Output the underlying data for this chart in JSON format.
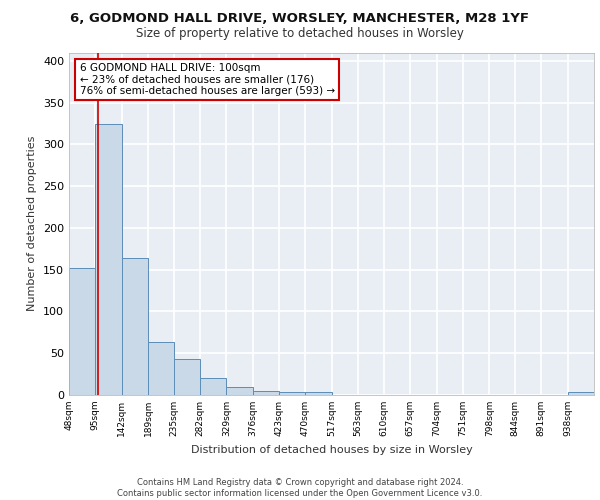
{
  "title1": "6, GODMOND HALL DRIVE, WORSLEY, MANCHESTER, M28 1YF",
  "title2": "Size of property relative to detached houses in Worsley",
  "xlabel": "Distribution of detached houses by size in Worsley",
  "ylabel": "Number of detached properties",
  "bar_edges": [
    48,
    95,
    142,
    189,
    235,
    282,
    329,
    376,
    423,
    470,
    517,
    563,
    610,
    657,
    704,
    751,
    798,
    844,
    891,
    938,
    985
  ],
  "bar_heights": [
    152,
    325,
    164,
    64,
    43,
    20,
    10,
    5,
    4,
    4,
    0,
    0,
    0,
    0,
    0,
    0,
    0,
    0,
    0,
    4
  ],
  "bar_color": "#c9d9e8",
  "bar_edge_color": "#5b8db8",
  "bg_color": "#e8eef4",
  "grid_color": "#ffffff",
  "property_line_x": 100,
  "property_line_color": "#cc0000",
  "annotation_line1": "6 GODMOND HALL DRIVE: 100sqm",
  "annotation_line2": "← 23% of detached houses are smaller (176)",
  "annotation_line3": "76% of semi-detached houses are larger (593) →",
  "annotation_box_color": "#ffffff",
  "annotation_box_edge": "#cc0000",
  "ylim": [
    0,
    410
  ],
  "yticks": [
    0,
    50,
    100,
    150,
    200,
    250,
    300,
    350,
    400
  ],
  "footer1": "Contains HM Land Registry data © Crown copyright and database right 2024.",
  "footer2": "Contains public sector information licensed under the Open Government Licence v3.0."
}
